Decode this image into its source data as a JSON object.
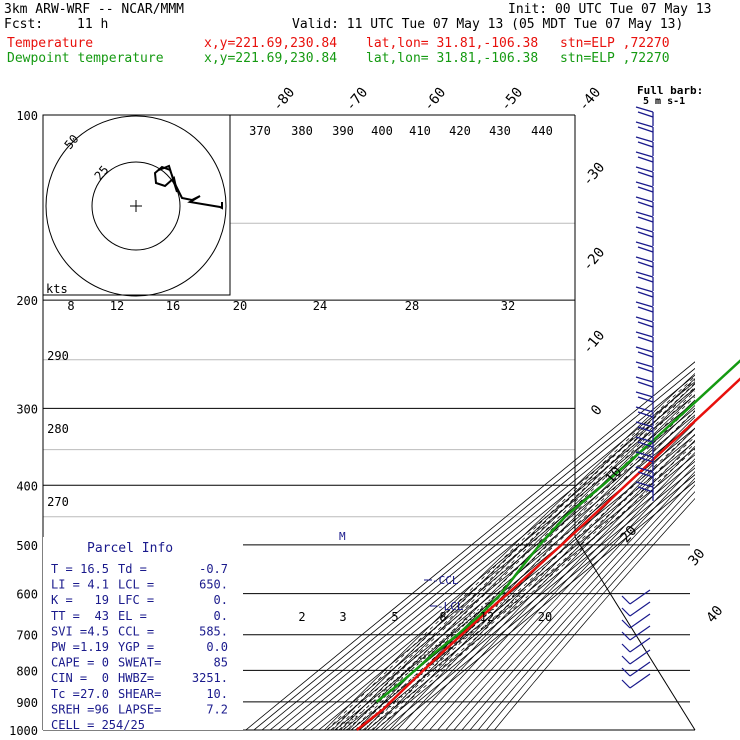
{
  "header": {
    "model": "3km ARW-WRF -- NCAR/MMM",
    "init": "Init: 00 UTC Tue 07 May 13",
    "fcst_label": "Fcst:",
    "fcst_value": "11 h",
    "valid": "Valid: 11 UTC Tue 07 May 13 (05 MDT Tue 07 May 13)",
    "temp_label": "Temperature",
    "dew_label": "Dewpoint temperature",
    "xy": "x,y=221.69,230.84",
    "latlon": "lat,lon= 31.81,-106.38",
    "stn": "stn=ELP ,72270"
  },
  "colors": {
    "temperature": "#e8100c",
    "dewpoint": "#159a12",
    "grid": "#000000",
    "dashed": "#000000",
    "label_blue": "#1a1a8c"
  },
  "chart_data": {
    "type": "line",
    "skewt": true,
    "ylim": [
      1000,
      100
    ],
    "pressure_ticks": [
      "100",
      "200",
      "300",
      "400",
      "500",
      "600",
      "700",
      "800",
      "900",
      "1000"
    ],
    "isotherm_labels": [
      "-80",
      "-70",
      "-60",
      "-50",
      "-40",
      "-30",
      "-20",
      "-10",
      "0",
      "10",
      "20",
      "30",
      "40"
    ],
    "theta_labels_top": [
      "370",
      "380",
      "390",
      "400",
      "410",
      "420",
      "430",
      "440"
    ],
    "theta_labels_left": [
      "290",
      "280",
      "270"
    ],
    "mixing_labels": [
      "2",
      "3",
      "5",
      "8",
      "12",
      "20"
    ],
    "wind_speed_labels": [
      "8",
      "12",
      "16",
      "20",
      "24",
      "28",
      "32"
    ],
    "hodograph_rings": [
      "50",
      "25"
    ],
    "hodograph_units": "kts",
    "barb_legend": [
      "Full barb:",
      "5 m s-1"
    ],
    "temperature": [
      {
        "p": 1000,
        "t": 17
      },
      {
        "p": 925,
        "t": 18.5
      },
      {
        "p": 900,
        "t": 16.5
      },
      {
        "p": 850,
        "t": 13
      },
      {
        "p": 800,
        "t": 9.5
      },
      {
        "p": 750,
        "t": 6
      },
      {
        "p": 700,
        "t": 3
      },
      {
        "p": 650,
        "t": 0
      },
      {
        "p": 600,
        "t": -2
      },
      {
        "p": 550,
        "t": -5.5
      },
      {
        "p": 500,
        "t": -9
      },
      {
        "p": 450,
        "t": -14
      },
      {
        "p": 400,
        "t": -19.5
      },
      {
        "p": 350,
        "t": -26
      },
      {
        "p": 300,
        "t": -33
      },
      {
        "p": 250,
        "t": -42
      },
      {
        "p": 200,
        "t": -51
      },
      {
        "p": 180,
        "t": -55
      },
      {
        "p": 150,
        "t": -58
      },
      {
        "p": 120,
        "t": -63
      },
      {
        "p": 100,
        "t": -68
      }
    ],
    "dewpoint": [
      {
        "p": 900,
        "t": -1
      },
      {
        "p": 850,
        "t": 0
      },
      {
        "p": 800,
        "t": -1
      },
      {
        "p": 750,
        "t": -3
      },
      {
        "p": 700,
        "t": -2
      },
      {
        "p": 650,
        "t": -4
      },
      {
        "p": 600,
        "t": -10
      },
      {
        "p": 550,
        "t": -23
      },
      {
        "p": 500,
        "t": -36
      },
      {
        "p": 450,
        "t": -47
      },
      {
        "p": 400,
        "t": -48
      },
      {
        "p": 350,
        "t": -52
      },
      {
        "p": 300,
        "t": -58
      },
      {
        "p": 250,
        "t": -66
      },
      {
        "p": 200,
        "t": -74
      },
      {
        "p": 150,
        "t": -84
      },
      {
        "p": 100,
        "t": -90
      }
    ],
    "annotations": [
      "LCL",
      "CCL",
      "M"
    ]
  },
  "parcel_info": {
    "title": "Parcel Info",
    "rows": [
      [
        "T  =",
        "16.5",
        "Td =",
        "-0.7"
      ],
      [
        "LI =",
        "4.1",
        "LCL =",
        "650."
      ],
      [
        "K  =",
        "19",
        "LFC =",
        "0."
      ],
      [
        "TT =",
        "43",
        "EL  =",
        "0."
      ],
      [
        "SVI =",
        "4.5",
        "CCL =",
        "585."
      ],
      [
        "PW =",
        "1.19",
        "YGP =",
        "0.0"
      ],
      [
        "CAPE =",
        "0",
        "SWEAT=",
        "85"
      ],
      [
        "CIN =",
        "0",
        "HWBZ=",
        "3251."
      ],
      [
        "Tc =",
        "27.0",
        "SHEAR=",
        "10."
      ],
      [
        "SREH =",
        "96",
        "LAPSE=",
        "7.2"
      ]
    ],
    "cell": "CELL = 254/25"
  }
}
